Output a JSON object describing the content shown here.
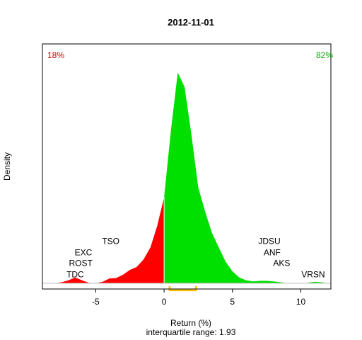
{
  "chart_data": {
    "type": "area",
    "title": "2012-11-01",
    "xlabel": "Return (%)",
    "ylabel": "Density",
    "subtitle": "interquartile range: 1.93",
    "xlim": [
      -8.9,
      12.2
    ],
    "ylim": [
      -0.012,
      0.5
    ],
    "xticks": [
      -5,
      0,
      5,
      10
    ],
    "xtick_labels": [
      "-5",
      "0",
      "5",
      "10"
    ],
    "grid": false,
    "colors": {
      "negative": "#ff0000",
      "positive": "#00e000",
      "iqr": "#ffc000",
      "neg_pct": "#cc0000",
      "pos_pct": "#00aa00"
    },
    "pct_negative": "18%",
    "pct_positive": "82%",
    "iqr_range": [
      0.4,
      2.33
    ],
    "density": {
      "x": [
        -8.0,
        -7.5,
        -7.0,
        -6.5,
        -6.0,
        -5.5,
        -5.0,
        -4.5,
        -4.0,
        -3.5,
        -3.0,
        -2.5,
        -2.0,
        -1.5,
        -1.0,
        -0.5,
        0.0,
        0.5,
        1.0,
        1.5,
        2.0,
        2.5,
        3.0,
        3.5,
        4.0,
        4.5,
        5.0,
        5.5,
        6.0,
        6.5,
        7.0,
        7.5,
        8.0,
        8.5,
        9.0,
        9.5,
        10.0,
        10.5,
        11.0,
        11.5,
        12.0
      ],
      "y": [
        0.0,
        0.002,
        0.006,
        0.012,
        0.006,
        0.001,
        0.0,
        0.003,
        0.01,
        0.011,
        0.018,
        0.028,
        0.034,
        0.05,
        0.075,
        0.12,
        0.18,
        0.32,
        0.44,
        0.41,
        0.31,
        0.2,
        0.15,
        0.105,
        0.075,
        0.045,
        0.025,
        0.012,
        0.006,
        0.004,
        0.005,
        0.005,
        0.004,
        0.002,
        0.0,
        0.0,
        0.0,
        0.001,
        0.003,
        0.002,
        0.0
      ]
    },
    "annotations": [
      {
        "label": "TDC",
        "x": -6.5,
        "y": 0.018
      },
      {
        "label": "ROST",
        "x": -6.1,
        "y": 0.042
      },
      {
        "label": "EXC",
        "x": -5.9,
        "y": 0.064
      },
      {
        "label": "TSO",
        "x": -3.9,
        "y": 0.088
      },
      {
        "label": "JDSU",
        "x": 7.7,
        "y": 0.088
      },
      {
        "label": "ANF",
        "x": 7.9,
        "y": 0.064
      },
      {
        "label": "AKS",
        "x": 8.6,
        "y": 0.042
      },
      {
        "label": "VRSN",
        "x": 10.9,
        "y": 0.018
      }
    ]
  }
}
